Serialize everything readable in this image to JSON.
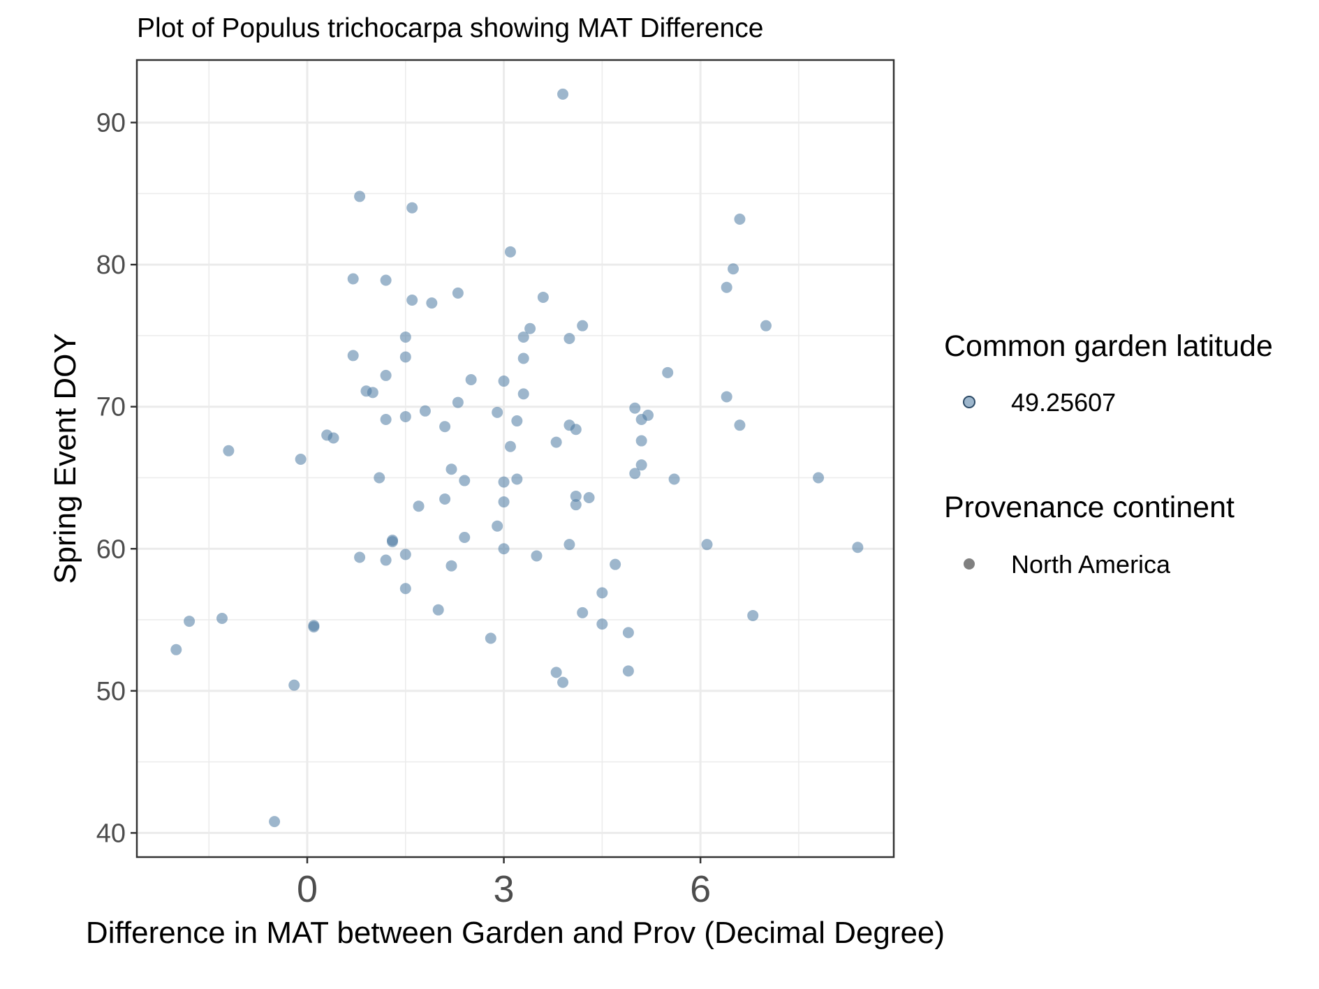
{
  "chart_data": {
    "type": "scatter",
    "title": "Plot of Populus trichocarpa showing MAT Difference",
    "xlabel": "Difference in MAT between Garden and Prov (Decimal Degree)",
    "ylabel": "Spring Event DOY",
    "xlim": [
      -2.6,
      8.95
    ],
    "ylim": [
      38.3,
      94.4
    ],
    "xticks": [
      0,
      3,
      6
    ],
    "yticks": [
      40,
      50,
      60,
      70,
      80,
      90
    ],
    "grid": true,
    "point_color": "#4d7aa3",
    "point_alpha": 0.55,
    "legend_position": "right",
    "legends": [
      {
        "title": "Common garden latitude",
        "entries": [
          "49.25607"
        ],
        "color": "#4d7aa3"
      },
      {
        "title": "Provenance continent",
        "entries": [
          "North America"
        ],
        "color": "#808080"
      }
    ],
    "points": [
      [
        3.9,
        92.0
      ],
      [
        0.8,
        84.8
      ],
      [
        1.6,
        84.0
      ],
      [
        6.6,
        83.2
      ],
      [
        3.1,
        80.9
      ],
      [
        6.5,
        79.7
      ],
      [
        0.7,
        79.0
      ],
      [
        1.2,
        78.9
      ],
      [
        6.4,
        78.4
      ],
      [
        2.3,
        78.0
      ],
      [
        3.6,
        77.7
      ],
      [
        1.6,
        77.5
      ],
      [
        1.9,
        77.3
      ],
      [
        7.0,
        75.7
      ],
      [
        4.2,
        75.7
      ],
      [
        3.4,
        75.5
      ],
      [
        3.3,
        74.9
      ],
      [
        1.5,
        74.9
      ],
      [
        4.0,
        74.8
      ],
      [
        0.7,
        73.6
      ],
      [
        1.5,
        73.5
      ],
      [
        3.3,
        73.4
      ],
      [
        5.5,
        72.4
      ],
      [
        1.2,
        72.2
      ],
      [
        2.5,
        71.9
      ],
      [
        3.0,
        71.8
      ],
      [
        0.9,
        71.1
      ],
      [
        1.0,
        71.0
      ],
      [
        3.3,
        70.9
      ],
      [
        6.4,
        70.7
      ],
      [
        2.3,
        70.3
      ],
      [
        5.0,
        69.9
      ],
      [
        2.9,
        69.6
      ],
      [
        1.8,
        69.7
      ],
      [
        5.2,
        69.4
      ],
      [
        1.5,
        69.3
      ],
      [
        1.2,
        69.1
      ],
      [
        5.1,
        69.1
      ],
      [
        3.2,
        69.0
      ],
      [
        4.0,
        68.7
      ],
      [
        6.6,
        68.7
      ],
      [
        2.1,
        68.6
      ],
      [
        4.1,
        68.4
      ],
      [
        0.3,
        68.0
      ],
      [
        0.4,
        67.8
      ],
      [
        5.1,
        67.6
      ],
      [
        3.8,
        67.5
      ],
      [
        3.1,
        67.2
      ],
      [
        -1.2,
        66.9
      ],
      [
        -0.1,
        66.3
      ],
      [
        5.1,
        65.9
      ],
      [
        2.2,
        65.6
      ],
      [
        5.0,
        65.3
      ],
      [
        1.1,
        65.0
      ],
      [
        7.8,
        65.0
      ],
      [
        5.6,
        64.9
      ],
      [
        3.2,
        64.9
      ],
      [
        2.4,
        64.8
      ],
      [
        3.0,
        64.7
      ],
      [
        4.1,
        63.7
      ],
      [
        4.3,
        63.6
      ],
      [
        2.1,
        63.5
      ],
      [
        3.0,
        63.3
      ],
      [
        4.1,
        63.1
      ],
      [
        1.7,
        63.0
      ],
      [
        2.9,
        61.6
      ],
      [
        2.4,
        60.8
      ],
      [
        1.3,
        60.6
      ],
      [
        1.3,
        60.5
      ],
      [
        6.1,
        60.3
      ],
      [
        4.0,
        60.3
      ],
      [
        8.4,
        60.1
      ],
      [
        3.0,
        60.0
      ],
      [
        1.5,
        59.6
      ],
      [
        3.5,
        59.5
      ],
      [
        0.8,
        59.4
      ],
      [
        1.2,
        59.2
      ],
      [
        4.7,
        58.9
      ],
      [
        2.2,
        58.8
      ],
      [
        1.5,
        57.2
      ],
      [
        4.5,
        56.9
      ],
      [
        2.0,
        55.7
      ],
      [
        6.8,
        55.3
      ],
      [
        4.2,
        55.5
      ],
      [
        -1.3,
        55.1
      ],
      [
        -1.8,
        54.9
      ],
      [
        4.5,
        54.7
      ],
      [
        0.1,
        54.6
      ],
      [
        0.1,
        54.5
      ],
      [
        4.9,
        54.1
      ],
      [
        2.8,
        53.7
      ],
      [
        -2.0,
        52.9
      ],
      [
        4.9,
        51.4
      ],
      [
        3.8,
        51.3
      ],
      [
        3.9,
        50.6
      ],
      [
        -0.2,
        50.4
      ],
      [
        -0.5,
        40.8
      ]
    ]
  }
}
